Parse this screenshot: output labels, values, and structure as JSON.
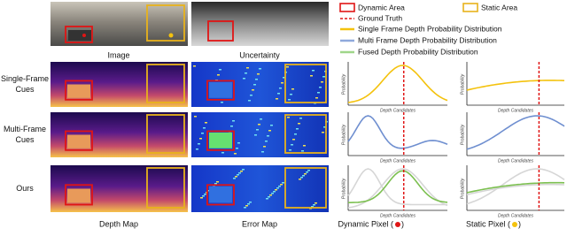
{
  "legend": [
    "Dynamic Area",
    "Static Area",
    "Ground Truth",
    "Single Frame Depth Probability Distribution",
    "Multi Frame Depth Probability Distribution",
    "Fused Depth Probability Distribution"
  ],
  "top_row": {
    "image": "Image",
    "uncertainty": "Uncertainty"
  },
  "row_labels": [
    [
      "Single-Frame",
      "Cues"
    ],
    [
      "Multi-Frame",
      "Cues"
    ],
    [
      "Ours"
    ]
  ],
  "bottom_labels": {
    "depth_map": "Depth Map",
    "error_map": "Error Map",
    "dynamic": [
      "Dynamic Pixel (",
      ")"
    ],
    "static": [
      "Static Pixel (",
      ")"
    ]
  },
  "plot_axes": {
    "xlabel": "Depth Candidates",
    "ylabel": "Probability"
  }
}
